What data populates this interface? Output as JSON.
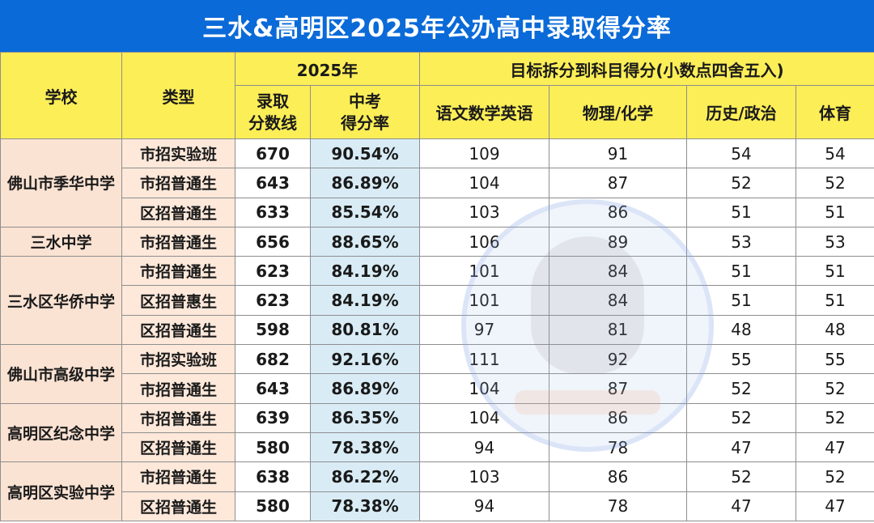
{
  "title": "三水&高明区2025年公办高中录取得分率",
  "headers": {
    "school": "学校",
    "type": "类型",
    "year": "2025年",
    "target": "目标拆分到科目得分(小数点四舍五入)",
    "score_line": "录取分数线",
    "rate": "中考得分率",
    "subjects": [
      "语文数学英语",
      "物理/化学",
      "历史/政治",
      "体育"
    ]
  },
  "schools": [
    {
      "name": "佛山市季华中学",
      "rows": [
        {
          "type": "市招实验班",
          "score": "670",
          "rate": "90.54%",
          "s1": "109",
          "s2": "91",
          "s3": "54",
          "s4": "54"
        },
        {
          "type": "市招普通生",
          "score": "643",
          "rate": "86.89%",
          "s1": "104",
          "s2": "87",
          "s3": "52",
          "s4": "52"
        },
        {
          "type": "区招普通生",
          "score": "633",
          "rate": "85.54%",
          "s1": "103",
          "s2": "86",
          "s3": "51",
          "s4": "51"
        }
      ]
    },
    {
      "name": "三水中学",
      "rows": [
        {
          "type": "市招普通生",
          "score": "656",
          "rate": "88.65%",
          "s1": "106",
          "s2": "89",
          "s3": "53",
          "s4": "53"
        }
      ]
    },
    {
      "name": "三水区华侨中学",
      "rows": [
        {
          "type": "市招普通生",
          "score": "623",
          "rate": "84.19%",
          "s1": "101",
          "s2": "84",
          "s3": "51",
          "s4": "51"
        },
        {
          "type": "区招普惠生",
          "score": "623",
          "rate": "84.19%",
          "s1": "101",
          "s2": "84",
          "s3": "51",
          "s4": "51"
        },
        {
          "type": "区招普通生",
          "score": "598",
          "rate": "80.81%",
          "s1": "97",
          "s2": "81",
          "s3": "48",
          "s4": "48"
        }
      ]
    },
    {
      "name": "佛山市高级中学",
      "rows": [
        {
          "type": "市招实验班",
          "score": "682",
          "rate": "92.16%",
          "s1": "111",
          "s2": "92",
          "s3": "55",
          "s4": "55"
        },
        {
          "type": "市招普通生",
          "score": "643",
          "rate": "86.89%",
          "s1": "104",
          "s2": "87",
          "s3": "52",
          "s4": "52"
        }
      ]
    },
    {
      "name": "高明区纪念中学",
      "rows": [
        {
          "type": "市招普通生",
          "score": "639",
          "rate": "86.35%",
          "s1": "104",
          "s2": "86",
          "s3": "52",
          "s4": "52"
        },
        {
          "type": "区招普通生",
          "score": "580",
          "rate": "78.38%",
          "s1": "94",
          "s2": "78",
          "s3": "47",
          "s4": "47"
        }
      ]
    },
    {
      "name": "高明区实验中学",
      "rows": [
        {
          "type": "市招普通生",
          "score": "638",
          "rate": "86.22%",
          "s1": "103",
          "s2": "86",
          "s3": "52",
          "s4": "52"
        },
        {
          "type": "区招普通生",
          "score": "580",
          "rate": "78.38%",
          "s1": "94",
          "s2": "78",
          "s3": "47",
          "s4": "47"
        }
      ]
    }
  ]
}
